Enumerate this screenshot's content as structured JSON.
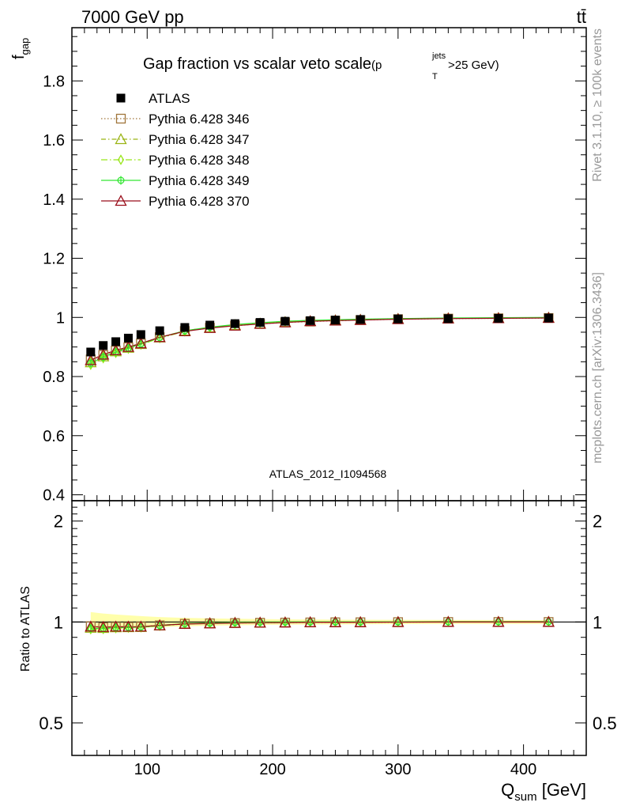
{
  "header": {
    "left": "7000 GeV pp",
    "right": "tt̄"
  },
  "side_labels": {
    "rivet": "Rivet 3.1.10, ≥ 100k events",
    "mcplots": "mcplots.cern.ch [arXiv:1306.3436]"
  },
  "chart_data": {
    "type": "scatter",
    "title_main": "Gap fraction vs scalar veto scale",
    "title_paren_open": "(p",
    "title_sup": "jets",
    "title_sub": "T",
    "title_tail": ">25 GeV)",
    "watermark": "ATLAS_2012_I1094568",
    "ylabel_main": "f",
    "ylabel_sub": "gap",
    "ylabel_ratio": "Ratio to ATLAS",
    "xlabel_main": "Q",
    "xlabel_sub": "sum",
    "xlabel_unit": " [GeV]",
    "xlim": [
      40,
      450
    ],
    "ylim_main": [
      0.38,
      1.98
    ],
    "ylim_ratio": [
      0.4,
      2.3
    ],
    "x_ticks": [
      100,
      200,
      300,
      400
    ],
    "y_ticks_main": [
      0.4,
      0.6,
      0.8,
      1,
      1.2,
      1.4,
      1.6,
      1.8
    ],
    "y_ticks_ratio": [
      0.5,
      1,
      2
    ],
    "legend_position": "top-left",
    "x": [
      55,
      65,
      75,
      85,
      95,
      110,
      130,
      150,
      170,
      190,
      210,
      230,
      250,
      270,
      300,
      340,
      380,
      420
    ],
    "data": {
      "name": "ATLAS",
      "values": [
        0.883,
        0.905,
        0.918,
        0.93,
        0.942,
        0.955,
        0.966,
        0.974,
        0.979,
        0.983,
        0.987,
        0.989,
        0.991,
        0.993,
        0.995,
        0.996,
        0.997,
        0.998
      ]
    },
    "series": [
      {
        "name": "Pythia 6.428 346",
        "color": "#a0753a",
        "marker": "square",
        "values": [
          0.858,
          0.873,
          0.888,
          0.899,
          0.912,
          0.933,
          0.954,
          0.965,
          0.972,
          0.978,
          0.983,
          0.986,
          0.989,
          0.991,
          0.994,
          0.996,
          0.997,
          0.998
        ]
      },
      {
        "name": "Pythia 6.428 347",
        "color": "#9ab314",
        "marker": "triangle",
        "values": [
          0.848,
          0.868,
          0.885,
          0.897,
          0.91,
          0.932,
          0.955,
          0.966,
          0.974,
          0.979,
          0.984,
          0.987,
          0.99,
          0.992,
          0.995,
          0.997,
          0.998,
          0.999
        ]
      },
      {
        "name": "Pythia 6.428 348",
        "color": "#99e61a",
        "marker": "diamond",
        "values": [
          0.84,
          0.862,
          0.88,
          0.894,
          0.908,
          0.93,
          0.953,
          0.966,
          0.975,
          0.981,
          0.986,
          0.989,
          0.991,
          0.993,
          0.996,
          0.997,
          0.998,
          0.999
        ]
      },
      {
        "name": "Pythia 6.428 349",
        "color": "#33e633",
        "marker": "circle",
        "values": [
          0.845,
          0.866,
          0.883,
          0.896,
          0.91,
          0.932,
          0.955,
          0.967,
          0.976,
          0.982,
          0.987,
          0.99,
          0.992,
          0.994,
          0.996,
          0.998,
          0.999,
          1.0
        ]
      },
      {
        "name": "Pythia 6.428 370",
        "color": "#990d1a",
        "marker": "triangle",
        "values": [
          0.855,
          0.874,
          0.889,
          0.9,
          0.912,
          0.933,
          0.953,
          0.964,
          0.972,
          0.978,
          0.983,
          0.987,
          0.989,
          0.991,
          0.994,
          0.996,
          0.997,
          0.998
        ]
      }
    ]
  }
}
